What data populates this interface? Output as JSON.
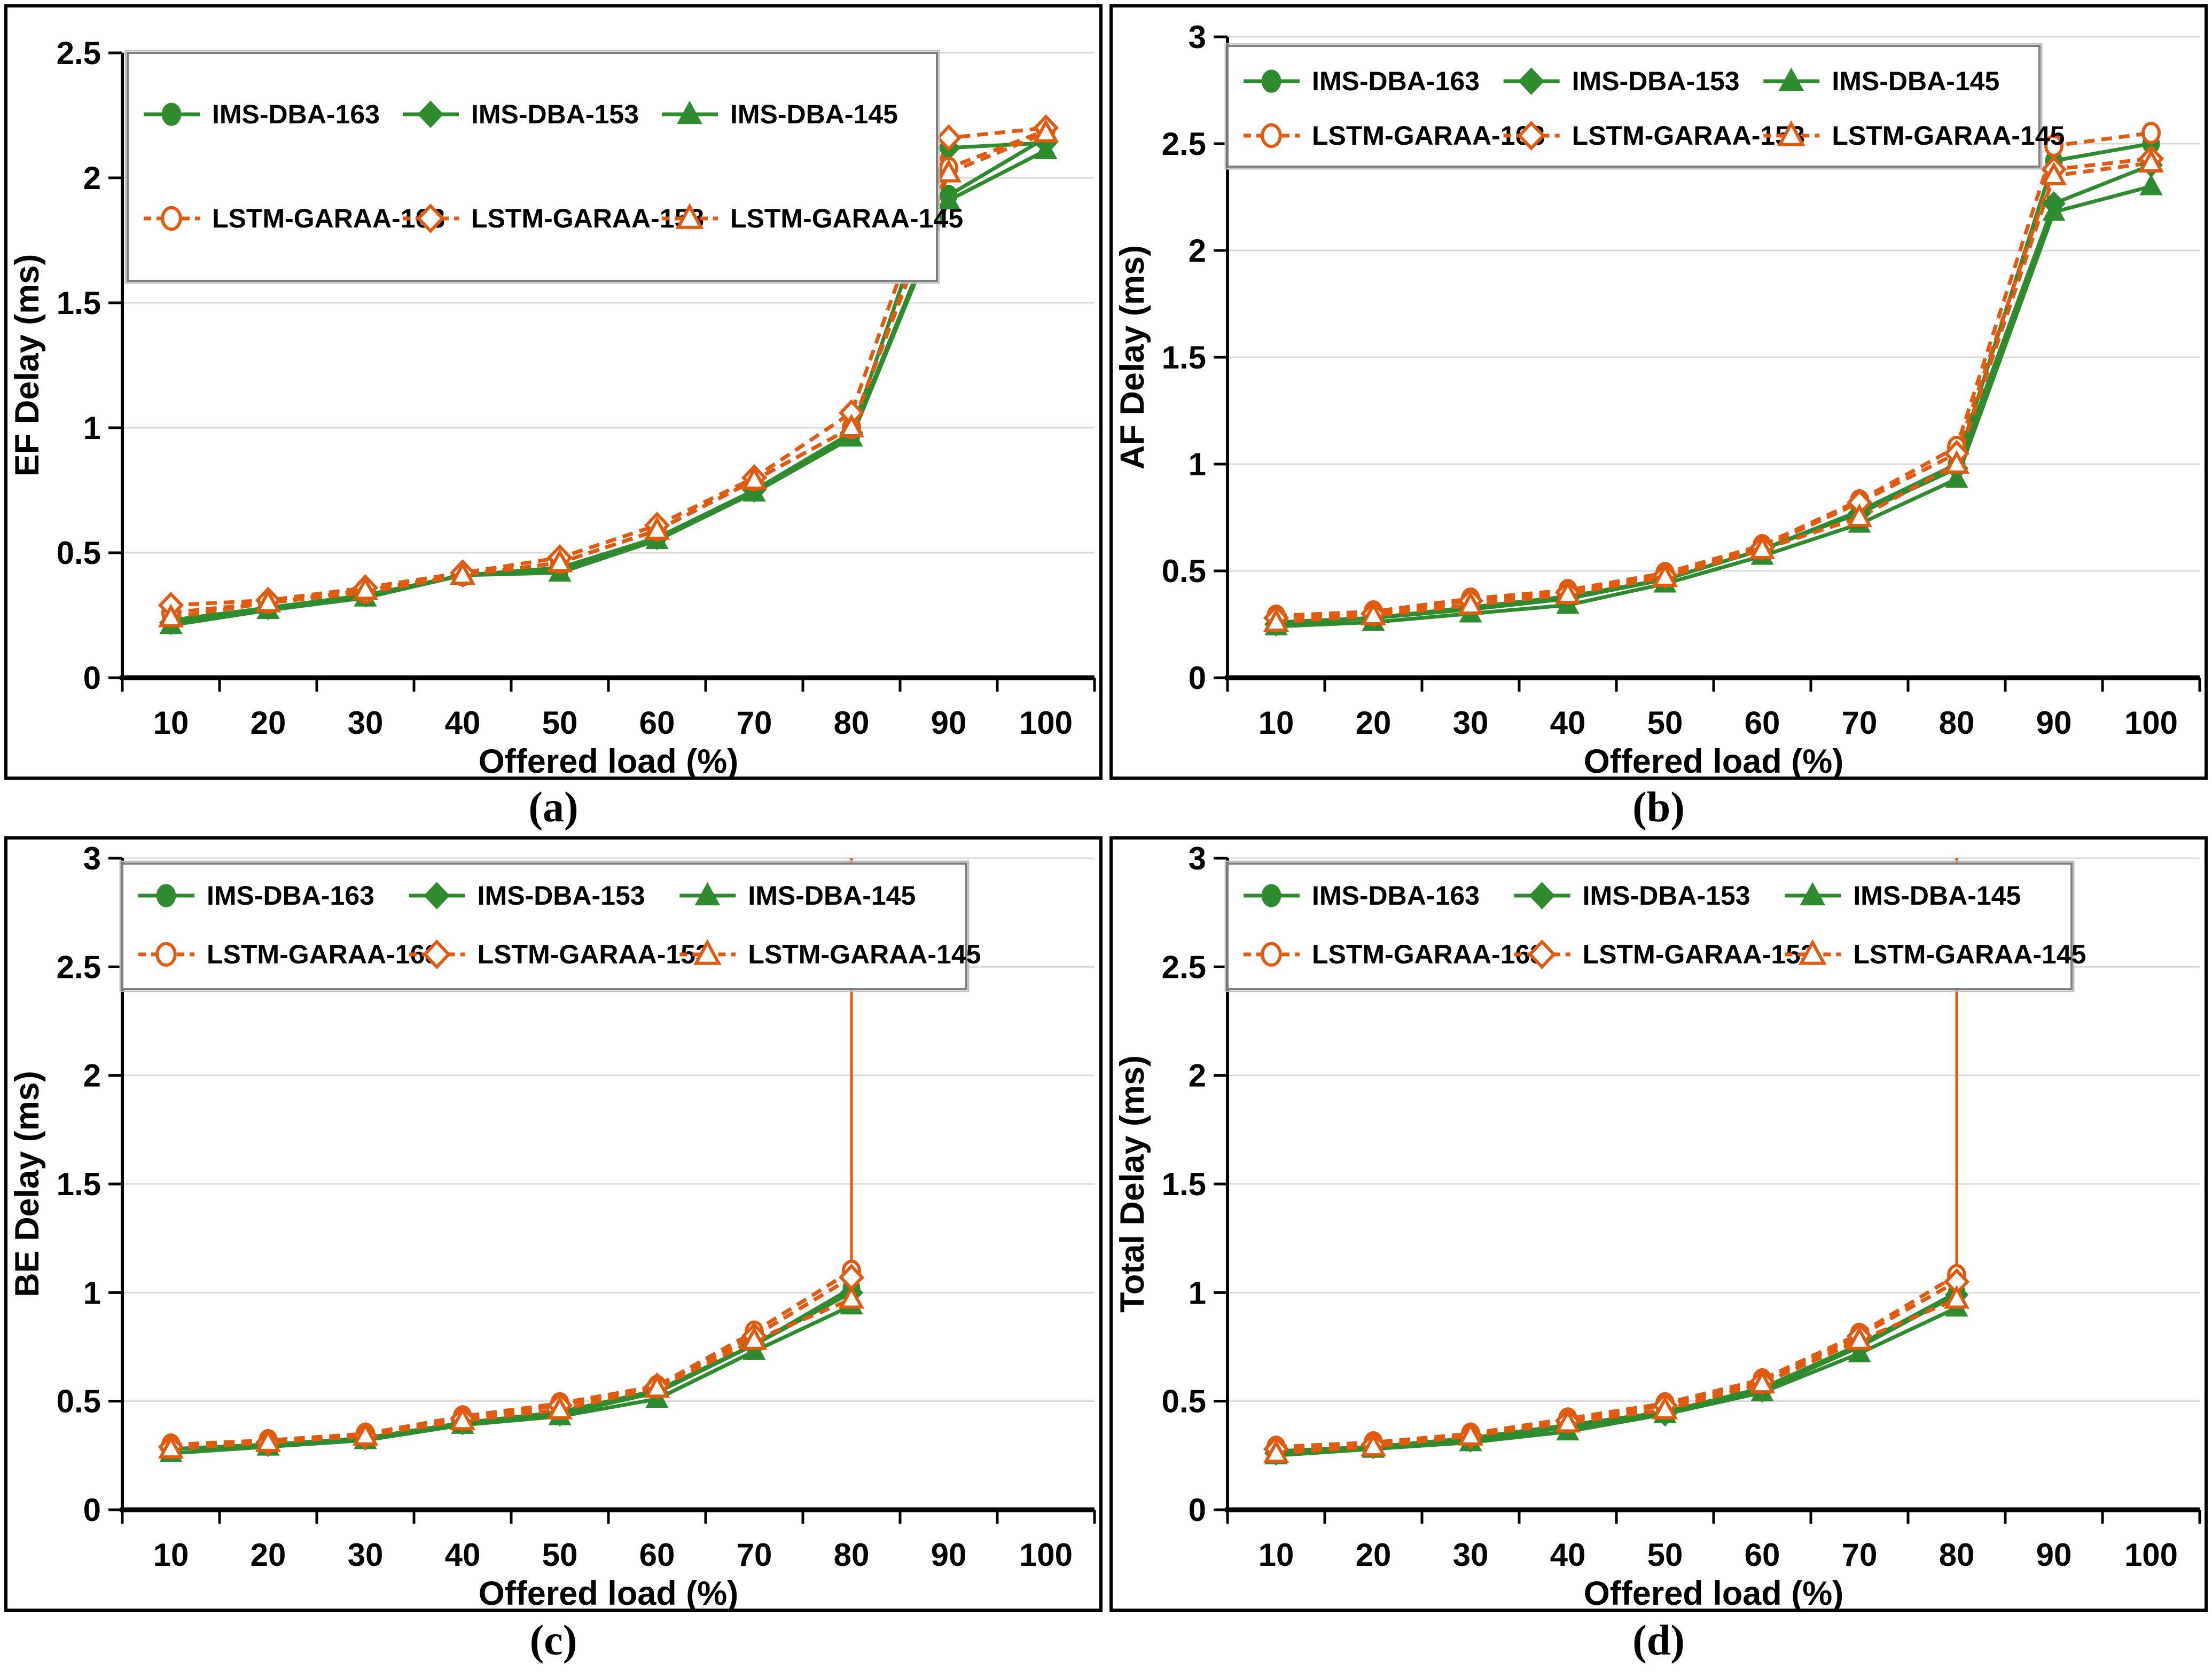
{
  "figure": {
    "type": "2x2-line-chart-grid",
    "colors": {
      "ims_green": "#2E8B2E",
      "lstm_orange": "#E05A10",
      "gridline": "#D9D9D9",
      "axis": "#000000",
      "legend_border": "#7F7F7F",
      "background": "#FFFFFF"
    }
  },
  "chart_data": [
    {
      "type": "line",
      "caption": "(a)",
      "ylabel": "EF Delay (ms)",
      "xlabel": "Offered load (%)",
      "ylim": [
        0,
        2.5
      ],
      "ytick_step": 0.5,
      "grid": "horizontal",
      "legend_position": "top-left",
      "categories": [
        10,
        20,
        30,
        40,
        50,
        60,
        70,
        80,
        90,
        100
      ],
      "series": [
        {
          "name": "IMS-DBA-163",
          "group": "ims",
          "marker": "circle",
          "values": [
            0.23,
            0.28,
            0.33,
            0.41,
            0.43,
            0.56,
            0.75,
            0.97,
            1.93,
            2.16
          ]
        },
        {
          "name": "IMS-DBA-153",
          "group": "ims",
          "marker": "diamond",
          "values": [
            0.22,
            0.28,
            0.33,
            0.41,
            0.44,
            0.56,
            0.75,
            0.98,
            2.12,
            2.14
          ]
        },
        {
          "name": "IMS-DBA-145",
          "group": "ims",
          "marker": "triangle",
          "values": [
            0.21,
            0.27,
            0.32,
            0.41,
            0.42,
            0.55,
            0.74,
            0.96,
            1.91,
            2.11
          ]
        },
        {
          "name": "LSTM-GARAA-163",
          "group": "lstm",
          "marker": "circle",
          "values": [
            0.26,
            0.3,
            0.34,
            0.41,
            0.46,
            0.59,
            0.79,
            1.0,
            2.04,
            2.19
          ]
        },
        {
          "name": "LSTM-GARAA-153",
          "group": "lstm",
          "marker": "diamond",
          "values": [
            0.29,
            0.31,
            0.36,
            0.42,
            0.48,
            0.61,
            0.8,
            1.06,
            2.16,
            2.2
          ]
        },
        {
          "name": "LSTM-GARAA-145",
          "group": "lstm",
          "marker": "triangle",
          "values": [
            0.24,
            0.3,
            0.35,
            0.41,
            0.46,
            0.59,
            0.79,
            1.0,
            2.02,
            2.18
          ]
        }
      ],
      "spike": null
    },
    {
      "type": "line",
      "caption": "(b)",
      "ylabel": "AF Delay (ms)",
      "xlabel": "Offered load (%)",
      "ylim": [
        0,
        3
      ],
      "ytick_step": 0.5,
      "grid": "horizontal",
      "legend_position": "top-left",
      "categories": [
        10,
        20,
        30,
        40,
        50,
        60,
        70,
        80,
        90,
        100
      ],
      "series": [
        {
          "name": "IMS-DBA-163",
          "group": "ims",
          "marker": "circle",
          "values": [
            0.26,
            0.28,
            0.33,
            0.38,
            0.46,
            0.6,
            0.78,
            1.0,
            2.42,
            2.5
          ]
        },
        {
          "name": "IMS-DBA-153",
          "group": "ims",
          "marker": "diamond",
          "values": [
            0.25,
            0.28,
            0.32,
            0.37,
            0.46,
            0.6,
            0.77,
            0.98,
            2.22,
            2.4
          ]
        },
        {
          "name": "IMS-DBA-145",
          "group": "ims",
          "marker": "triangle",
          "values": [
            0.24,
            0.26,
            0.3,
            0.34,
            0.44,
            0.57,
            0.72,
            0.93,
            2.18,
            2.3
          ]
        },
        {
          "name": "LSTM-GARAA-163",
          "group": "lstm",
          "marker": "circle",
          "values": [
            0.29,
            0.31,
            0.37,
            0.41,
            0.49,
            0.62,
            0.83,
            1.08,
            2.49,
            2.55
          ]
        },
        {
          "name": "LSTM-GARAA-153",
          "group": "lstm",
          "marker": "diamond",
          "values": [
            0.28,
            0.3,
            0.36,
            0.4,
            0.48,
            0.61,
            0.82,
            1.05,
            2.38,
            2.43
          ]
        },
        {
          "name": "LSTM-GARAA-145",
          "group": "lstm",
          "marker": "triangle",
          "values": [
            0.26,
            0.29,
            0.34,
            0.39,
            0.47,
            0.6,
            0.75,
            1.0,
            2.35,
            2.41
          ]
        }
      ],
      "spike": null
    },
    {
      "type": "line",
      "caption": "(c)",
      "ylabel": "BE Delay (ms)",
      "xlabel": "Offered load (%)",
      "ylim": [
        0,
        3
      ],
      "ytick_step": 0.5,
      "grid": "horizontal",
      "legend_position": "top-left",
      "categories": [
        10,
        20,
        30,
        40,
        50,
        60,
        70,
        80,
        90,
        100
      ],
      "series": [
        {
          "name": "IMS-DBA-163",
          "group": "ims",
          "marker": "circle",
          "values": [
            0.28,
            0.3,
            0.33,
            0.4,
            0.45,
            0.55,
            0.76,
            1.02
          ]
        },
        {
          "name": "IMS-DBA-153",
          "group": "ims",
          "marker": "diamond",
          "values": [
            0.28,
            0.3,
            0.33,
            0.4,
            0.44,
            0.54,
            0.76,
            1.0
          ]
        },
        {
          "name": "IMS-DBA-145",
          "group": "ims",
          "marker": "triangle",
          "values": [
            0.26,
            0.29,
            0.32,
            0.39,
            0.43,
            0.51,
            0.73,
            0.94
          ]
        },
        {
          "name": "LSTM-GARAA-163",
          "group": "lstm",
          "marker": "circle",
          "values": [
            0.3,
            0.32,
            0.35,
            0.43,
            0.49,
            0.57,
            0.82,
            1.1
          ]
        },
        {
          "name": "LSTM-GARAA-153",
          "group": "lstm",
          "marker": "diamond",
          "values": [
            0.29,
            0.31,
            0.34,
            0.42,
            0.48,
            0.57,
            0.8,
            1.07
          ]
        },
        {
          "name": "LSTM-GARAA-145",
          "group": "lstm",
          "marker": "triangle",
          "values": [
            0.28,
            0.31,
            0.34,
            0.41,
            0.46,
            0.56,
            0.78,
            0.97
          ]
        }
      ],
      "spike": {
        "category": 80,
        "from_value": 1.1,
        "note": "off-scale rise clipped at plot top"
      }
    },
    {
      "type": "line",
      "caption": "(d)",
      "ylabel": "Total Delay (ms)",
      "xlabel": "Offered load (%)",
      "ylim": [
        0,
        3
      ],
      "ytick_step": 0.5,
      "grid": "horizontal",
      "legend_position": "top-left",
      "categories": [
        10,
        20,
        30,
        40,
        50,
        60,
        70,
        80,
        90,
        100
      ],
      "series": [
        {
          "name": "IMS-DBA-163",
          "group": "ims",
          "marker": "circle",
          "values": [
            0.27,
            0.29,
            0.33,
            0.39,
            0.45,
            0.56,
            0.76,
            1.0
          ]
        },
        {
          "name": "IMS-DBA-153",
          "group": "ims",
          "marker": "diamond",
          "values": [
            0.26,
            0.29,
            0.32,
            0.38,
            0.44,
            0.55,
            0.75,
            0.99
          ]
        },
        {
          "name": "IMS-DBA-145",
          "group": "ims",
          "marker": "triangle",
          "values": [
            0.25,
            0.28,
            0.31,
            0.36,
            0.44,
            0.54,
            0.72,
            0.93
          ]
        },
        {
          "name": "LSTM-GARAA-163",
          "group": "lstm",
          "marker": "circle",
          "values": [
            0.29,
            0.31,
            0.35,
            0.42,
            0.49,
            0.6,
            0.81,
            1.08
          ]
        },
        {
          "name": "LSTM-GARAA-153",
          "group": "lstm",
          "marker": "diamond",
          "values": [
            0.28,
            0.3,
            0.34,
            0.41,
            0.48,
            0.59,
            0.8,
            1.05
          ]
        },
        {
          "name": "LSTM-GARAA-145",
          "group": "lstm",
          "marker": "triangle",
          "values": [
            0.26,
            0.29,
            0.34,
            0.4,
            0.46,
            0.58,
            0.78,
            0.97
          ]
        }
      ],
      "spike": {
        "category": 80,
        "from_value": 1.08,
        "note": "off-scale rise clipped at plot top"
      }
    }
  ]
}
